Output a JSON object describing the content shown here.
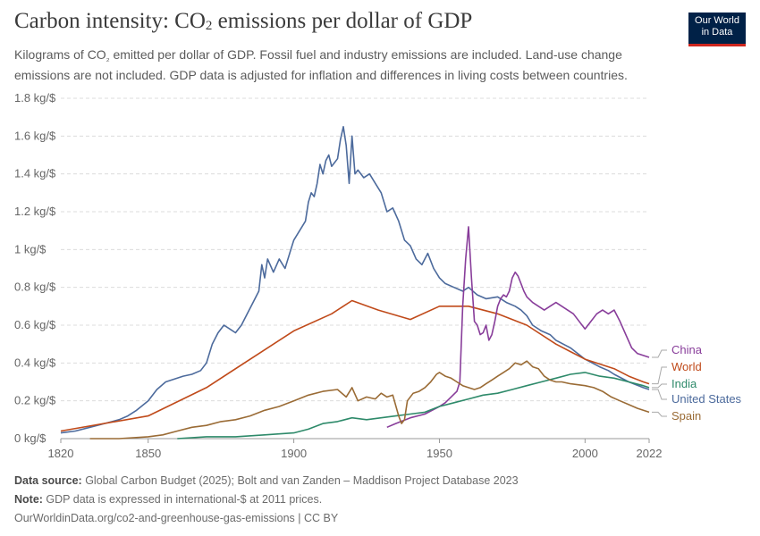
{
  "header": {
    "title_pre": "Carbon intensity: CO",
    "title_sub": "2",
    "title_post": " emissions per dollar of GDP",
    "subtitle_l1_pre": "Kilograms of CO",
    "subtitle_l1_sub": "₂",
    "subtitle_l1_post": " emitted per dollar of GDP. Fossil fuel and industry emissions are included. Land-use change",
    "subtitle_l2": "emissions are not included. GDP data is adjusted for inflation and differences in living costs between countries.",
    "logo_line1": "Our World",
    "logo_line2": "in Data"
  },
  "footer": {
    "source_label": "Data source:",
    "source_text": " Global Carbon Budget (2025); Bolt and van Zanden – Maddison Project Database 2023",
    "note_label": "Note:",
    "note_text": " GDP data is expressed in international-$ at 2011 prices.",
    "url": "OurWorldinData.org/co2-and-greenhouse-gas-emissions | CC BY"
  },
  "chart_data": {
    "type": "line",
    "title": "Carbon intensity: CO₂ emissions per dollar of GDP",
    "ylabel": "",
    "xlabel": "",
    "xlim": [
      1820,
      2022
    ],
    "ylim": [
      0,
      1.8
    ],
    "x_ticks": [
      "1820",
      "1850",
      "1900",
      "1950",
      "2000",
      "2022"
    ],
    "x_tick_values": [
      1820,
      1850,
      1900,
      1950,
      2000,
      2022
    ],
    "y_ticks": [
      "0 kg/$",
      "0.2 kg/$",
      "0.4 kg/$",
      "0.6 kg/$",
      "0.8 kg/$",
      "1 kg/$",
      "1.2 kg/$",
      "1.4 kg/$",
      "1.6 kg/$",
      "1.8 kg/$"
    ],
    "y_tick_values": [
      0,
      0.2,
      0.4,
      0.6,
      0.8,
      1.0,
      1.2,
      1.4,
      1.6,
      1.8
    ],
    "grid": "horizontal-dashed",
    "legend": "right-end-labels",
    "series": [
      {
        "name": "United States",
        "color": "#4c6a9c",
        "points": [
          [
            1820,
            0.03
          ],
          [
            1825,
            0.04
          ],
          [
            1830,
            0.06
          ],
          [
            1835,
            0.08
          ],
          [
            1840,
            0.1
          ],
          [
            1843,
            0.12
          ],
          [
            1846,
            0.15
          ],
          [
            1850,
            0.2
          ],
          [
            1853,
            0.26
          ],
          [
            1856,
            0.3
          ],
          [
            1860,
            0.32
          ],
          [
            1862,
            0.33
          ],
          [
            1865,
            0.34
          ],
          [
            1868,
            0.36
          ],
          [
            1870,
            0.4
          ],
          [
            1872,
            0.5
          ],
          [
            1874,
            0.56
          ],
          [
            1876,
            0.6
          ],
          [
            1878,
            0.58
          ],
          [
            1880,
            0.56
          ],
          [
            1882,
            0.6
          ],
          [
            1884,
            0.66
          ],
          [
            1886,
            0.72
          ],
          [
            1888,
            0.78
          ],
          [
            1889,
            0.92
          ],
          [
            1890,
            0.85
          ],
          [
            1891,
            0.95
          ],
          [
            1893,
            0.88
          ],
          [
            1895,
            0.95
          ],
          [
            1897,
            0.9
          ],
          [
            1899,
            1.0
          ],
          [
            1900,
            1.05
          ],
          [
            1902,
            1.1
          ],
          [
            1904,
            1.15
          ],
          [
            1905,
            1.25
          ],
          [
            1906,
            1.3
          ],
          [
            1907,
            1.28
          ],
          [
            1908,
            1.35
          ],
          [
            1909,
            1.45
          ],
          [
            1910,
            1.4
          ],
          [
            1911,
            1.47
          ],
          [
            1912,
            1.5
          ],
          [
            1913,
            1.44
          ],
          [
            1914,
            1.46
          ],
          [
            1915,
            1.48
          ],
          [
            1916,
            1.58
          ],
          [
            1917,
            1.65
          ],
          [
            1918,
            1.55
          ],
          [
            1919,
            1.35
          ],
          [
            1920,
            1.6
          ],
          [
            1921,
            1.4
          ],
          [
            1922,
            1.42
          ],
          [
            1924,
            1.38
          ],
          [
            1926,
            1.4
          ],
          [
            1928,
            1.35
          ],
          [
            1930,
            1.3
          ],
          [
            1932,
            1.2
          ],
          [
            1934,
            1.22
          ],
          [
            1936,
            1.15
          ],
          [
            1938,
            1.05
          ],
          [
            1940,
            1.02
          ],
          [
            1942,
            0.95
          ],
          [
            1944,
            0.92
          ],
          [
            1946,
            0.98
          ],
          [
            1948,
            0.9
          ],
          [
            1950,
            0.85
          ],
          [
            1952,
            0.82
          ],
          [
            1955,
            0.8
          ],
          [
            1958,
            0.78
          ],
          [
            1960,
            0.8
          ],
          [
            1963,
            0.76
          ],
          [
            1966,
            0.74
          ],
          [
            1970,
            0.75
          ],
          [
            1973,
            0.72
          ],
          [
            1976,
            0.7
          ],
          [
            1978,
            0.68
          ],
          [
            1980,
            0.65
          ],
          [
            1982,
            0.6
          ],
          [
            1985,
            0.57
          ],
          [
            1988,
            0.55
          ],
          [
            1990,
            0.52
          ],
          [
            1995,
            0.48
          ],
          [
            2000,
            0.42
          ],
          [
            2005,
            0.38
          ],
          [
            2008,
            0.36
          ],
          [
            2010,
            0.34
          ],
          [
            2015,
            0.3
          ],
          [
            2020,
            0.27
          ],
          [
            2022,
            0.26
          ]
        ]
      },
      {
        "name": "World",
        "color": "#c04a1a",
        "points": [
          [
            1820,
            0.04
          ],
          [
            1850,
            0.12
          ],
          [
            1870,
            0.27
          ],
          [
            1900,
            0.57
          ],
          [
            1913,
            0.66
          ],
          [
            1920,
            0.73
          ],
          [
            1929,
            0.68
          ],
          [
            1940,
            0.63
          ],
          [
            1950,
            0.7
          ],
          [
            1960,
            0.7
          ],
          [
            1970,
            0.66
          ],
          [
            1980,
            0.6
          ],
          [
            1990,
            0.5
          ],
          [
            2000,
            0.42
          ],
          [
            2010,
            0.37
          ],
          [
            2015,
            0.33
          ],
          [
            2020,
            0.3
          ],
          [
            2022,
            0.29
          ]
        ]
      },
      {
        "name": "China",
        "color": "#883d9a",
        "points": [
          [
            1932,
            0.06
          ],
          [
            1935,
            0.08
          ],
          [
            1940,
            0.11
          ],
          [
            1945,
            0.13
          ],
          [
            1950,
            0.17
          ],
          [
            1952,
            0.19
          ],
          [
            1954,
            0.22
          ],
          [
            1956,
            0.25
          ],
          [
            1957,
            0.3
          ],
          [
            1958,
            0.7
          ],
          [
            1959,
            0.95
          ],
          [
            1960,
            1.12
          ],
          [
            1961,
            0.85
          ],
          [
            1962,
            0.62
          ],
          [
            1963,
            0.6
          ],
          [
            1964,
            0.55
          ],
          [
            1965,
            0.56
          ],
          [
            1966,
            0.6
          ],
          [
            1967,
            0.52
          ],
          [
            1968,
            0.55
          ],
          [
            1969,
            0.62
          ],
          [
            1970,
            0.7
          ],
          [
            1971,
            0.74
          ],
          [
            1972,
            0.76
          ],
          [
            1973,
            0.75
          ],
          [
            1974,
            0.78
          ],
          [
            1975,
            0.85
          ],
          [
            1976,
            0.88
          ],
          [
            1977,
            0.86
          ],
          [
            1978,
            0.82
          ],
          [
            1979,
            0.78
          ],
          [
            1980,
            0.75
          ],
          [
            1982,
            0.72
          ],
          [
            1984,
            0.7
          ],
          [
            1986,
            0.68
          ],
          [
            1988,
            0.7
          ],
          [
            1990,
            0.72
          ],
          [
            1992,
            0.7
          ],
          [
            1994,
            0.68
          ],
          [
            1996,
            0.66
          ],
          [
            1998,
            0.62
          ],
          [
            2000,
            0.58
          ],
          [
            2002,
            0.62
          ],
          [
            2004,
            0.66
          ],
          [
            2006,
            0.68
          ],
          [
            2008,
            0.66
          ],
          [
            2010,
            0.68
          ],
          [
            2012,
            0.62
          ],
          [
            2014,
            0.55
          ],
          [
            2016,
            0.48
          ],
          [
            2018,
            0.45
          ],
          [
            2020,
            0.44
          ],
          [
            2022,
            0.43
          ]
        ]
      },
      {
        "name": "India",
        "color": "#2e8a6a",
        "points": [
          [
            1860,
            0.0
          ],
          [
            1870,
            0.01
          ],
          [
            1880,
            0.01
          ],
          [
            1890,
            0.02
          ],
          [
            1900,
            0.03
          ],
          [
            1905,
            0.05
          ],
          [
            1910,
            0.08
          ],
          [
            1915,
            0.09
          ],
          [
            1920,
            0.11
          ],
          [
            1925,
            0.1
          ],
          [
            1930,
            0.11
          ],
          [
            1935,
            0.12
          ],
          [
            1940,
            0.13
          ],
          [
            1945,
            0.14
          ],
          [
            1950,
            0.17
          ],
          [
            1955,
            0.19
          ],
          [
            1960,
            0.21
          ],
          [
            1965,
            0.23
          ],
          [
            1970,
            0.24
          ],
          [
            1975,
            0.26
          ],
          [
            1980,
            0.28
          ],
          [
            1985,
            0.3
          ],
          [
            1990,
            0.32
          ],
          [
            1995,
            0.34
          ],
          [
            2000,
            0.35
          ],
          [
            2005,
            0.33
          ],
          [
            2010,
            0.32
          ],
          [
            2015,
            0.3
          ],
          [
            2020,
            0.28
          ],
          [
            2022,
            0.27
          ]
        ]
      },
      {
        "name": "Spain",
        "color": "#9a6b35",
        "points": [
          [
            1830,
            0.0
          ],
          [
            1840,
            0.0
          ],
          [
            1850,
            0.01
          ],
          [
            1855,
            0.02
          ],
          [
            1860,
            0.04
          ],
          [
            1865,
            0.06
          ],
          [
            1870,
            0.07
          ],
          [
            1875,
            0.09
          ],
          [
            1880,
            0.1
          ],
          [
            1885,
            0.12
          ],
          [
            1890,
            0.15
          ],
          [
            1895,
            0.17
          ],
          [
            1900,
            0.2
          ],
          [
            1905,
            0.23
          ],
          [
            1910,
            0.25
          ],
          [
            1915,
            0.26
          ],
          [
            1918,
            0.22
          ],
          [
            1920,
            0.27
          ],
          [
            1922,
            0.2
          ],
          [
            1925,
            0.22
          ],
          [
            1928,
            0.21
          ],
          [
            1930,
            0.24
          ],
          [
            1932,
            0.22
          ],
          [
            1934,
            0.23
          ],
          [
            1936,
            0.12
          ],
          [
            1937,
            0.08
          ],
          [
            1938,
            0.1
          ],
          [
            1939,
            0.2
          ],
          [
            1941,
            0.24
          ],
          [
            1943,
            0.25
          ],
          [
            1945,
            0.27
          ],
          [
            1947,
            0.3
          ],
          [
            1949,
            0.34
          ],
          [
            1950,
            0.35
          ],
          [
            1952,
            0.33
          ],
          [
            1954,
            0.32
          ],
          [
            1956,
            0.3
          ],
          [
            1958,
            0.28
          ],
          [
            1960,
            0.27
          ],
          [
            1962,
            0.26
          ],
          [
            1964,
            0.27
          ],
          [
            1966,
            0.29
          ],
          [
            1968,
            0.31
          ],
          [
            1970,
            0.33
          ],
          [
            1972,
            0.35
          ],
          [
            1974,
            0.37
          ],
          [
            1976,
            0.4
          ],
          [
            1978,
            0.39
          ],
          [
            1980,
            0.41
          ],
          [
            1982,
            0.38
          ],
          [
            1984,
            0.37
          ],
          [
            1986,
            0.33
          ],
          [
            1988,
            0.31
          ],
          [
            1990,
            0.3
          ],
          [
            1992,
            0.3
          ],
          [
            1995,
            0.29
          ],
          [
            2000,
            0.28
          ],
          [
            2003,
            0.27
          ],
          [
            2006,
            0.25
          ],
          [
            2009,
            0.22
          ],
          [
            2012,
            0.2
          ],
          [
            2015,
            0.18
          ],
          [
            2018,
            0.16
          ],
          [
            2020,
            0.15
          ],
          [
            2022,
            0.14
          ]
        ]
      }
    ]
  }
}
